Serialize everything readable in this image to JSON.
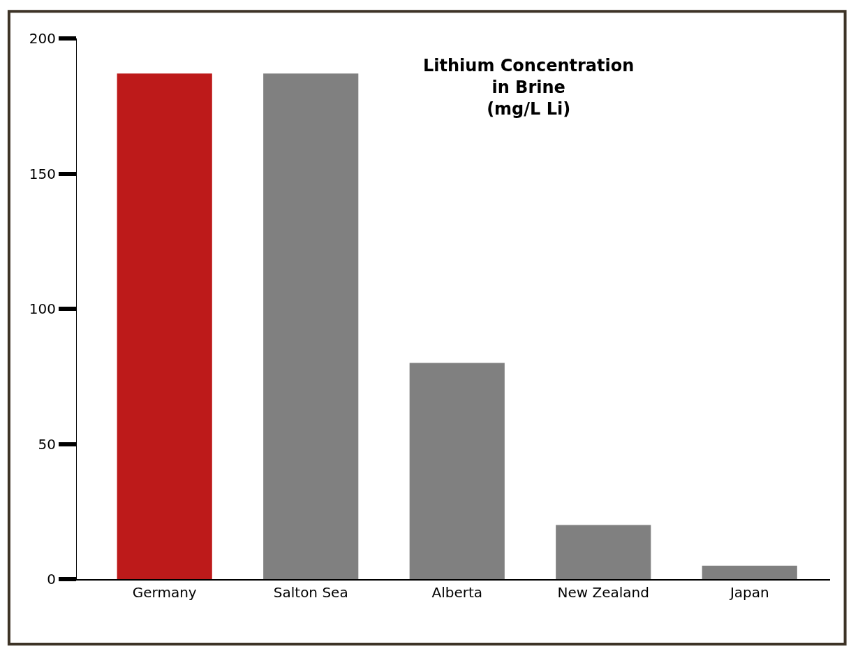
{
  "chart_data": {
    "type": "bar",
    "title": "Lithium Concentration\nin Brine\n(mg/L Li)",
    "categories": [
      "Germany",
      "Salton Sea",
      "Alberta",
      "New Zealand",
      "Japan"
    ],
    "values": [
      187,
      187,
      80,
      20,
      5
    ],
    "colors": [
      "#bd1a1a",
      "#808080",
      "#808080",
      "#808080",
      "#808080"
    ],
    "ylim": [
      0,
      200
    ],
    "yticks": [
      0,
      50,
      100,
      150,
      200
    ]
  }
}
